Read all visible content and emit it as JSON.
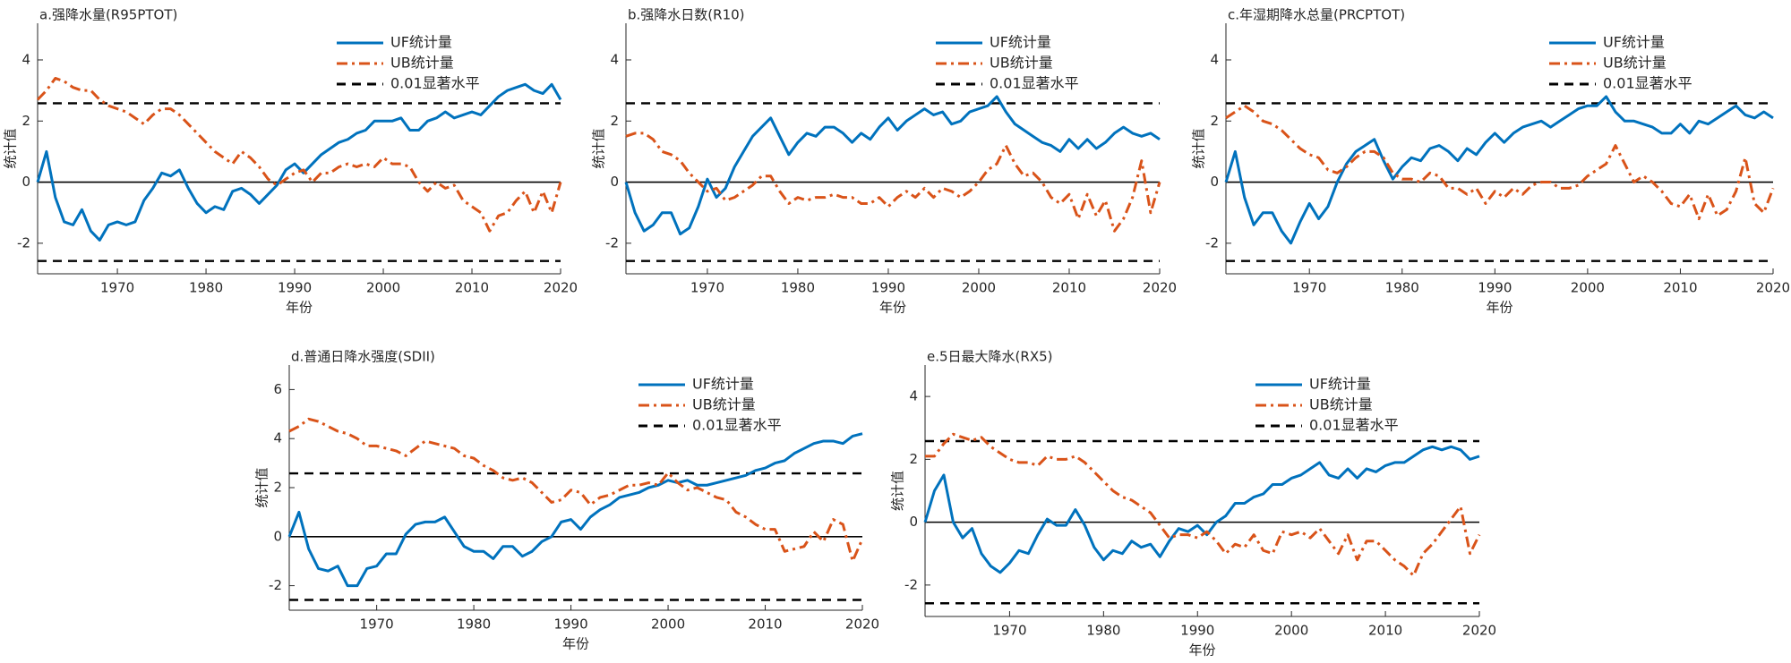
{
  "chart_data": [
    {
      "type": "line",
      "title": "a.强降水量(R95PTOT)",
      "xlabel": "年份",
      "ylabel": "统计值",
      "x": [
        1961,
        1962,
        1963,
        1964,
        1965,
        1966,
        1967,
        1968,
        1969,
        1970,
        1971,
        1972,
        1973,
        1974,
        1975,
        1976,
        1977,
        1978,
        1979,
        1980,
        1981,
        1982,
        1983,
        1984,
        1985,
        1986,
        1987,
        1988,
        1989,
        1990,
        1991,
        1992,
        1993,
        1994,
        1995,
        1996,
        1997,
        1998,
        1999,
        2000,
        2001,
        2002,
        2003,
        2004,
        2005,
        2006,
        2007,
        2008,
        2009,
        2010,
        2011,
        2012,
        2013,
        2014,
        2015,
        2016,
        2017,
        2018,
        2019,
        2020
      ],
      "xlim": [
        1961,
        2020
      ],
      "xticks": [
        1970,
        1980,
        1990,
        2000,
        2010,
        2020
      ],
      "ylim": [
        -3,
        5.2
      ],
      "yticks": [
        -2,
        0,
        2,
        4
      ],
      "legend": "northeast",
      "zero_line": 0,
      "significance": {
        "name": "0.01显著水平",
        "values": [
          2.58,
          -2.58
        ],
        "color": "#000000"
      },
      "series": [
        {
          "name": "UF统计量",
          "color": "#0072BD",
          "style": "solid",
          "values": [
            0,
            1.0,
            -0.5,
            -1.3,
            -1.4,
            -0.9,
            -1.6,
            -1.9,
            -1.4,
            -1.3,
            -1.4,
            -1.3,
            -0.6,
            -0.2,
            0.3,
            0.2,
            0.4,
            -0.2,
            -0.7,
            -1.0,
            -0.8,
            -0.9,
            -0.3,
            -0.2,
            -0.4,
            -0.7,
            -0.4,
            -0.1,
            0.4,
            0.6,
            0.3,
            0.6,
            0.9,
            1.1,
            1.3,
            1.4,
            1.6,
            1.7,
            2.0,
            2.0,
            2.0,
            2.1,
            1.7,
            1.7,
            2.0,
            2.1,
            2.3,
            2.1,
            2.2,
            2.3,
            2.2,
            2.5,
            2.8,
            3.0,
            3.1,
            3.2,
            3.0,
            2.9,
            3.2,
            2.7
          ]
        },
        {
          "name": "UB统计量",
          "color": "#D95319",
          "style": "dashdot",
          "values": [
            2.7,
            3.0,
            3.4,
            3.3,
            3.1,
            3.0,
            3.0,
            2.7,
            2.5,
            2.4,
            2.3,
            2.1,
            1.9,
            2.2,
            2.4,
            2.4,
            2.2,
            1.9,
            1.6,
            1.3,
            1.0,
            0.8,
            0.6,
            1.0,
            0.8,
            0.5,
            0.1,
            -0.1,
            0.1,
            0.3,
            0.4,
            0.0,
            0.3,
            0.3,
            0.5,
            0.6,
            0.5,
            0.6,
            0.5,
            0.8,
            0.6,
            0.6,
            0.5,
            0.0,
            -0.3,
            0.0,
            -0.2,
            -0.1,
            -0.6,
            -0.8,
            -1.0,
            -1.6,
            -1.1,
            -1.0,
            -0.6,
            -0.3,
            -1.0,
            -0.3,
            -1.0,
            0.0
          ]
        }
      ]
    },
    {
      "type": "line",
      "title": "b.强降水日数(R10)",
      "xlabel": "年份",
      "ylabel": "统计值",
      "x": [
        1961,
        1962,
        1963,
        1964,
        1965,
        1966,
        1967,
        1968,
        1969,
        1970,
        1971,
        1972,
        1973,
        1974,
        1975,
        1976,
        1977,
        1978,
        1979,
        1980,
        1981,
        1982,
        1983,
        1984,
        1985,
        1986,
        1987,
        1988,
        1989,
        1990,
        1991,
        1992,
        1993,
        1994,
        1995,
        1996,
        1997,
        1998,
        1999,
        2000,
        2001,
        2002,
        2003,
        2004,
        2005,
        2006,
        2007,
        2008,
        2009,
        2010,
        2011,
        2012,
        2013,
        2014,
        2015,
        2016,
        2017,
        2018,
        2019,
        2020
      ],
      "xlim": [
        1961,
        2020
      ],
      "xticks": [
        1970,
        1980,
        1990,
        2000,
        2010,
        2020
      ],
      "ylim": [
        -3,
        5.2
      ],
      "yticks": [
        -2,
        0,
        2,
        4
      ],
      "legend": "northeast",
      "zero_line": 0,
      "significance": {
        "name": "0.01显著水平",
        "values": [
          2.58,
          -2.58
        ],
        "color": "#000000"
      },
      "series": [
        {
          "name": "UF统计量",
          "color": "#0072BD",
          "style": "solid",
          "values": [
            0,
            -1.0,
            -1.6,
            -1.4,
            -1.0,
            -1.0,
            -1.7,
            -1.5,
            -0.8,
            0.1,
            -0.5,
            -0.2,
            0.5,
            1.0,
            1.5,
            1.8,
            2.1,
            1.5,
            0.9,
            1.3,
            1.6,
            1.5,
            1.8,
            1.8,
            1.6,
            1.3,
            1.6,
            1.4,
            1.8,
            2.1,
            1.7,
            2.0,
            2.2,
            2.4,
            2.2,
            2.3,
            1.9,
            2.0,
            2.3,
            2.4,
            2.5,
            2.8,
            2.3,
            1.9,
            1.7,
            1.5,
            1.3,
            1.2,
            1.0,
            1.4,
            1.1,
            1.4,
            1.1,
            1.3,
            1.6,
            1.8,
            1.6,
            1.5,
            1.6,
            1.4
          ]
        },
        {
          "name": "UB统计量",
          "color": "#D95319",
          "style": "dashdot",
          "values": [
            1.5,
            1.6,
            1.6,
            1.4,
            1.0,
            0.9,
            0.7,
            0.3,
            0.0,
            -0.3,
            -0.2,
            -0.6,
            -0.5,
            -0.3,
            -0.1,
            0.2,
            0.2,
            -0.3,
            -0.7,
            -0.5,
            -0.6,
            -0.5,
            -0.5,
            -0.4,
            -0.5,
            -0.5,
            -0.7,
            -0.7,
            -0.5,
            -0.8,
            -0.5,
            -0.3,
            -0.5,
            -0.2,
            -0.5,
            -0.2,
            -0.3,
            -0.5,
            -0.3,
            0.0,
            0.4,
            0.6,
            1.2,
            0.6,
            0.2,
            0.3,
            0.0,
            -0.5,
            -0.7,
            -0.4,
            -1.2,
            -0.4,
            -1.1,
            -0.6,
            -1.6,
            -1.2,
            -0.5,
            0.7,
            -1.0,
            0.0
          ]
        }
      ]
    },
    {
      "type": "line",
      "title": "c.年湿期降水总量(PRCPTOT)",
      "xlabel": "年份",
      "ylabel": "统计值",
      "x": [
        1961,
        1962,
        1963,
        1964,
        1965,
        1966,
        1967,
        1968,
        1969,
        1970,
        1971,
        1972,
        1973,
        1974,
        1975,
        1976,
        1977,
        1978,
        1979,
        1980,
        1981,
        1982,
        1983,
        1984,
        1985,
        1986,
        1987,
        1988,
        1989,
        1990,
        1991,
        1992,
        1993,
        1994,
        1995,
        1996,
        1997,
        1998,
        1999,
        2000,
        2001,
        2002,
        2003,
        2004,
        2005,
        2006,
        2007,
        2008,
        2009,
        2010,
        2011,
        2012,
        2013,
        2014,
        2015,
        2016,
        2017,
        2018,
        2019,
        2020
      ],
      "xlim": [
        1961,
        2020
      ],
      "xticks": [
        1970,
        1980,
        1990,
        2000,
        2010,
        2020
      ],
      "ylim": [
        -3,
        5.2
      ],
      "yticks": [
        -2,
        0,
        2,
        4
      ],
      "legend": "northeast",
      "zero_line": 0,
      "significance": {
        "name": "0.01显著水平",
        "values": [
          2.58,
          -2.58
        ],
        "color": "#000000"
      },
      "series": [
        {
          "name": "UF统计量",
          "color": "#0072BD",
          "style": "solid",
          "values": [
            0,
            1.0,
            -0.5,
            -1.4,
            -1.0,
            -1.0,
            -1.6,
            -2.0,
            -1.3,
            -0.7,
            -1.2,
            -0.8,
            0.0,
            0.6,
            1.0,
            1.2,
            1.4,
            0.7,
            0.1,
            0.5,
            0.8,
            0.7,
            1.1,
            1.2,
            1.0,
            0.7,
            1.1,
            0.9,
            1.3,
            1.6,
            1.3,
            1.6,
            1.8,
            1.9,
            2.0,
            1.8,
            2.0,
            2.2,
            2.4,
            2.5,
            2.5,
            2.8,
            2.3,
            2.0,
            2.0,
            1.9,
            1.8,
            1.6,
            1.6,
            1.9,
            1.6,
            2.0,
            1.9,
            2.1,
            2.3,
            2.5,
            2.2,
            2.1,
            2.3,
            2.1
          ]
        },
        {
          "name": "UB统计量",
          "color": "#D95319",
          "style": "dashdot",
          "values": [
            2.1,
            2.3,
            2.5,
            2.3,
            2.0,
            1.9,
            1.7,
            1.4,
            1.1,
            0.9,
            0.8,
            0.4,
            0.3,
            0.5,
            0.8,
            1.0,
            1.0,
            0.8,
            0.3,
            0.1,
            0.1,
            0.0,
            0.3,
            0.2,
            -0.2,
            -0.2,
            -0.4,
            -0.2,
            -0.7,
            -0.3,
            -0.5,
            -0.2,
            -0.4,
            -0.1,
            0.0,
            0.0,
            -0.2,
            -0.2,
            -0.1,
            0.2,
            0.4,
            0.6,
            1.2,
            0.6,
            0.0,
            0.2,
            0.0,
            -0.3,
            -0.7,
            -0.8,
            -0.4,
            -1.2,
            -0.4,
            -1.1,
            -0.9,
            -0.3,
            0.8,
            -0.7,
            -1.0,
            -0.2
          ]
        }
      ]
    },
    {
      "type": "line",
      "title": "d.普通日降水强度(SDII)",
      "xlabel": "年份",
      "ylabel": "统计值",
      "x": [
        1961,
        1962,
        1963,
        1964,
        1965,
        1966,
        1967,
        1968,
        1969,
        1970,
        1971,
        1972,
        1973,
        1974,
        1975,
        1976,
        1977,
        1978,
        1979,
        1980,
        1981,
        1982,
        1983,
        1984,
        1985,
        1986,
        1987,
        1988,
        1989,
        1990,
        1991,
        1992,
        1993,
        1994,
        1995,
        1996,
        1997,
        1998,
        1999,
        2000,
        2001,
        2002,
        2003,
        2004,
        2005,
        2006,
        2007,
        2008,
        2009,
        2010,
        2011,
        2012,
        2013,
        2014,
        2015,
        2016,
        2017,
        2018,
        2019,
        2020
      ],
      "xlim": [
        1961,
        2020
      ],
      "xticks": [
        1970,
        1980,
        1990,
        2000,
        2010,
        2020
      ],
      "ylim": [
        -3,
        7
      ],
      "yticks": [
        -2,
        0,
        2,
        4,
        6
      ],
      "legend": "northeast",
      "zero_line": 0,
      "significance": {
        "name": "0.01显著水平",
        "values": [
          2.58,
          -2.58
        ],
        "color": "#000000"
      },
      "series": [
        {
          "name": "UF统计量",
          "color": "#0072BD",
          "style": "solid",
          "values": [
            0,
            1.0,
            -0.5,
            -1.3,
            -1.4,
            -1.2,
            -2.0,
            -2.0,
            -1.3,
            -1.2,
            -0.7,
            -0.7,
            0.1,
            0.5,
            0.6,
            0.6,
            0.8,
            0.2,
            -0.4,
            -0.6,
            -0.6,
            -0.9,
            -0.4,
            -0.4,
            -0.8,
            -0.6,
            -0.2,
            0.0,
            0.6,
            0.7,
            0.3,
            0.8,
            1.1,
            1.3,
            1.6,
            1.7,
            1.8,
            2.0,
            2.1,
            2.3,
            2.2,
            2.3,
            2.1,
            2.1,
            2.2,
            2.3,
            2.4,
            2.5,
            2.7,
            2.8,
            3.0,
            3.1,
            3.4,
            3.6,
            3.8,
            3.9,
            3.9,
            3.8,
            4.1,
            4.2
          ]
        },
        {
          "name": "UB统计量",
          "color": "#D95319",
          "style": "dashdot",
          "values": [
            4.3,
            4.5,
            4.8,
            4.7,
            4.5,
            4.3,
            4.2,
            4.0,
            3.7,
            3.7,
            3.6,
            3.5,
            3.3,
            3.6,
            3.9,
            3.8,
            3.7,
            3.6,
            3.3,
            3.2,
            2.9,
            2.7,
            2.4,
            2.3,
            2.4,
            2.2,
            1.8,
            1.4,
            1.5,
            1.9,
            1.8,
            1.3,
            1.6,
            1.7,
            1.9,
            2.1,
            2.1,
            2.2,
            2.1,
            2.6,
            2.2,
            1.9,
            2.0,
            1.8,
            1.6,
            1.5,
            1.0,
            0.8,
            0.5,
            0.3,
            0.3,
            -0.6,
            -0.5,
            -0.4,
            0.2,
            -0.2,
            0.7,
            0.5,
            -1.0,
            -0.1
          ]
        }
      ]
    },
    {
      "type": "line",
      "title": "e.5日最大降水(RX5)",
      "xlabel": "年份",
      "ylabel": "统计值",
      "x": [
        1961,
        1962,
        1963,
        1964,
        1965,
        1966,
        1967,
        1968,
        1969,
        1970,
        1971,
        1972,
        1973,
        1974,
        1975,
        1976,
        1977,
        1978,
        1979,
        1980,
        1981,
        1982,
        1983,
        1984,
        1985,
        1986,
        1987,
        1988,
        1989,
        1990,
        1991,
        1992,
        1993,
        1994,
        1995,
        1996,
        1997,
        1998,
        1999,
        2000,
        2001,
        2002,
        2003,
        2004,
        2005,
        2006,
        2007,
        2008,
        2009,
        2010,
        2011,
        2012,
        2013,
        2014,
        2015,
        2016,
        2017,
        2018,
        2019,
        2020
      ],
      "xlim": [
        1961,
        2020
      ],
      "xticks": [
        1970,
        1980,
        1990,
        2000,
        2010,
        2020
      ],
      "ylim": [
        -3,
        5
      ],
      "yticks": [
        -2,
        0,
        2,
        4
      ],
      "legend": "northeast",
      "zero_line": 0,
      "significance": {
        "name": "0.01显著水平",
        "values": [
          2.58,
          -2.58
        ],
        "color": "#000000"
      },
      "series": [
        {
          "name": "UF统计量",
          "color": "#0072BD",
          "style": "solid",
          "values": [
            0,
            1.0,
            1.5,
            0.0,
            -0.5,
            -0.2,
            -1.0,
            -1.4,
            -1.6,
            -1.3,
            -0.9,
            -1.0,
            -0.4,
            0.1,
            -0.1,
            -0.1,
            0.4,
            -0.1,
            -0.8,
            -1.2,
            -0.9,
            -1.0,
            -0.6,
            -0.8,
            -0.7,
            -1.1,
            -0.6,
            -0.2,
            -0.3,
            -0.1,
            -0.4,
            0.0,
            0.2,
            0.6,
            0.6,
            0.8,
            0.9,
            1.2,
            1.2,
            1.4,
            1.5,
            1.7,
            1.9,
            1.5,
            1.4,
            1.7,
            1.4,
            1.7,
            1.6,
            1.8,
            1.9,
            1.9,
            2.1,
            2.3,
            2.4,
            2.3,
            2.4,
            2.3,
            2.0,
            2.1
          ]
        },
        {
          "name": "UB统计量",
          "color": "#D95319",
          "style": "dashdot",
          "values": [
            2.1,
            2.1,
            2.5,
            2.8,
            2.7,
            2.6,
            2.7,
            2.4,
            2.2,
            2.0,
            1.9,
            1.9,
            1.8,
            2.1,
            2.0,
            2.0,
            2.1,
            1.9,
            1.6,
            1.3,
            1.0,
            0.8,
            0.7,
            0.5,
            0.3,
            -0.1,
            -0.5,
            -0.4,
            -0.4,
            -0.5,
            -0.3,
            -0.6,
            -1.0,
            -0.7,
            -0.8,
            -0.4,
            -0.9,
            -1.0,
            -0.3,
            -0.4,
            -0.3,
            -0.5,
            -0.2,
            -0.6,
            -1.0,
            -0.4,
            -1.2,
            -0.6,
            -0.6,
            -0.9,
            -1.2,
            -1.4,
            -1.7,
            -1.0,
            -0.7,
            -0.3,
            0.1,
            0.5,
            -1.0,
            -0.4
          ]
        }
      ]
    }
  ]
}
